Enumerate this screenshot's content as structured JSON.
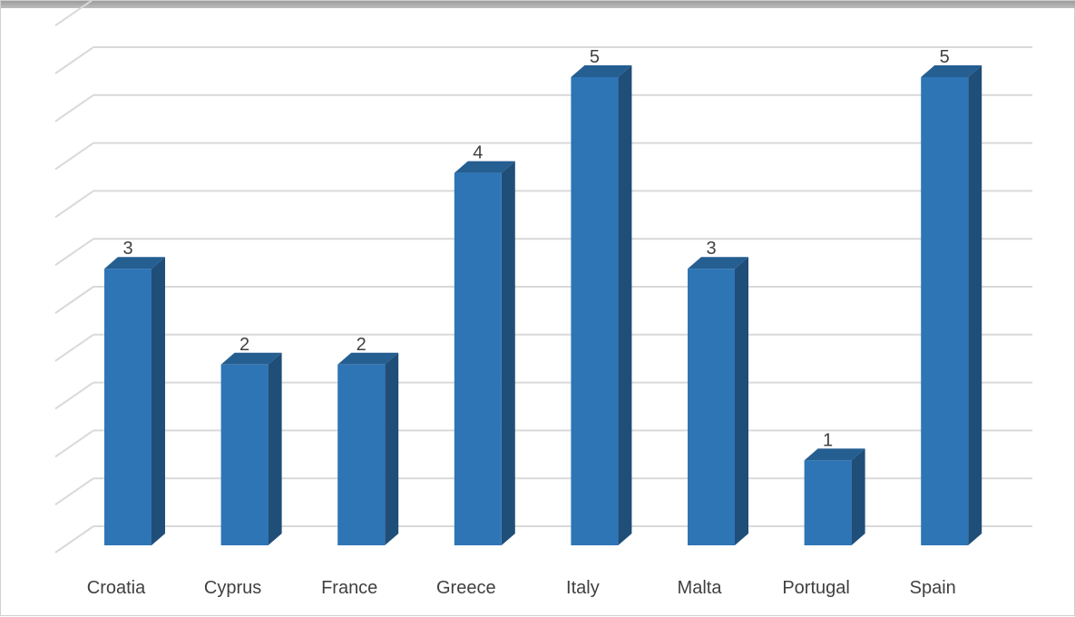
{
  "chart_data": {
    "type": "bar",
    "style": "3d-column",
    "categories": [
      "Croatia",
      "Cyprus",
      "France",
      "Greece",
      "Italy",
      "Malta",
      "Portugal",
      "Spain"
    ],
    "values": [
      3,
      2,
      2,
      4,
      5,
      3,
      1,
      5
    ],
    "data_labels": [
      "3",
      "2",
      "2",
      "4",
      "5",
      "3",
      "1",
      "5"
    ],
    "title": "",
    "xlabel": "",
    "ylabel": "",
    "ylim": [
      0,
      5.5
    ],
    "grid": true,
    "legend": "none",
    "colors": {
      "bar_front": "#2e75b6",
      "bar_side": "#1f4e79",
      "bar_top": "#255e91",
      "gridline": "#d9d9d9",
      "text": "#404040",
      "window_bar": "#a6a6a6"
    }
  }
}
